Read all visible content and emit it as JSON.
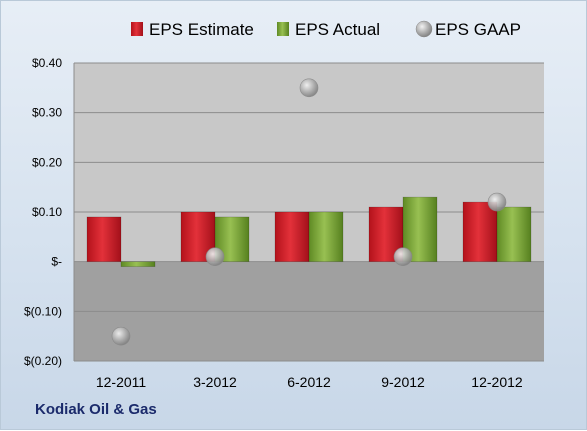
{
  "company_label": "Kodiak Oil & Gas",
  "colors": {
    "estimate": "#d6202a",
    "actual": "#7fa83a",
    "gaap": "#a9a9a9",
    "plot_upper": "#c8c8c8",
    "plot_lower": "#a0a0a0"
  },
  "chart_data": {
    "type": "bar",
    "title": "",
    "xlabel": "",
    "ylabel": "",
    "categories": [
      "12-2011",
      "3-2012",
      "6-2012",
      "9-2012",
      "12-2012"
    ],
    "ylim": [
      -0.2,
      0.4
    ],
    "yticks": [
      0.4,
      0.3,
      0.2,
      0.1,
      0,
      -0.1,
      -0.2
    ],
    "ytick_labels": [
      "$0.40",
      "$0.30",
      "$0.20",
      "$0.10",
      "$-",
      "$(0.10)",
      "$(0.20)"
    ],
    "grid": true,
    "legend_position": "top",
    "series": [
      {
        "name": "EPS Estimate",
        "kind": "bar",
        "values": [
          0.09,
          0.1,
          0.1,
          0.11,
          0.12
        ]
      },
      {
        "name": "EPS Actual",
        "kind": "bar",
        "values": [
          -0.01,
          0.09,
          0.1,
          0.13,
          0.11
        ]
      },
      {
        "name": "EPS GAAP",
        "kind": "point",
        "values": [
          -0.15,
          0.01,
          0.35,
          0.01,
          0.12
        ]
      }
    ]
  }
}
